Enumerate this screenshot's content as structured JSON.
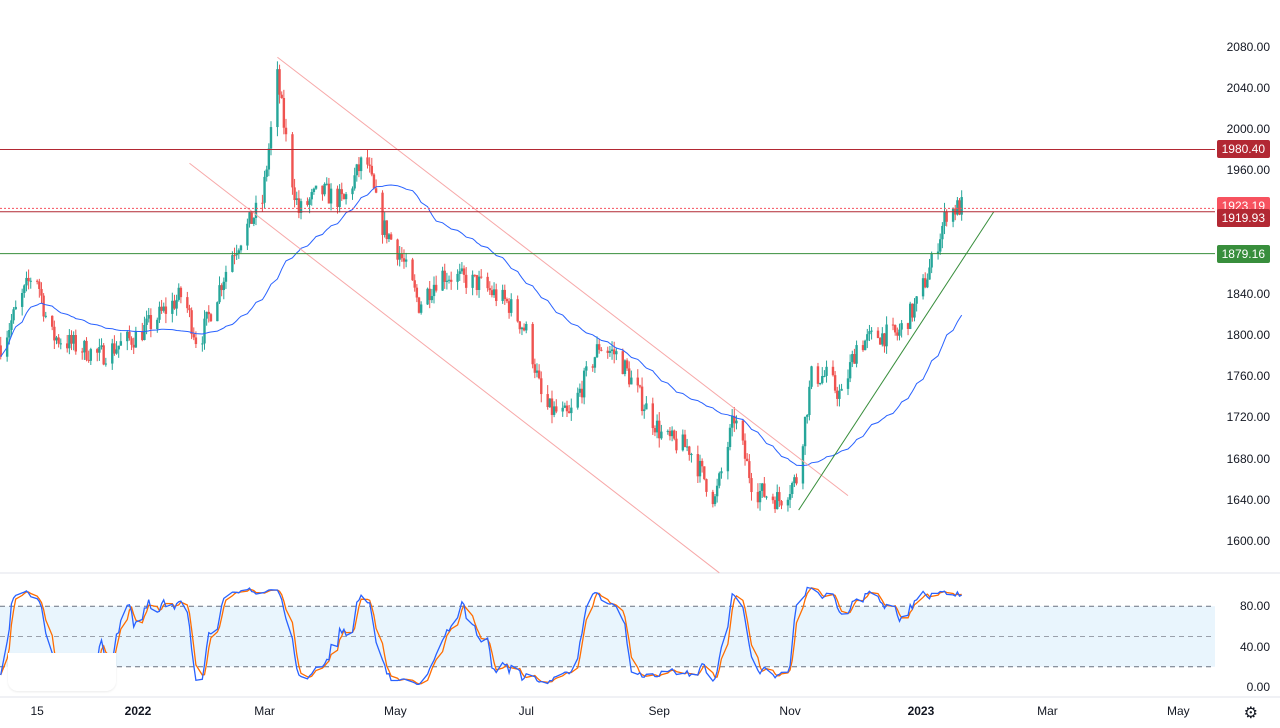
{
  "chart_data": {
    "type": "candlestick",
    "title": "",
    "price_axis": {
      "ticks": [
        "2080.00",
        "2040.00",
        "2000.00",
        "1960.00",
        "1840.00",
        "1800.00",
        "1760.00",
        "1720.00",
        "1680.00",
        "1640.00",
        "1600.00"
      ],
      "tick_values": [
        2080,
        2040,
        2000,
        1960,
        1840,
        1800,
        1760,
        1720,
        1680,
        1640,
        1600
      ],
      "range": [
        1560,
        2100
      ]
    },
    "time_axis": {
      "labels": [
        "15",
        "2022",
        "Mar",
        "May",
        "Jul",
        "Sep",
        "Nov",
        "2023",
        "Mar",
        "May"
      ],
      "label_dates": [
        "2021-11-15",
        "2022-01-01",
        "2022-03-01",
        "2022-05-01",
        "2022-07-01",
        "2022-09-01",
        "2022-11-01",
        "2023-01-01",
        "2023-03-01",
        "2023-05-01"
      ],
      "range": [
        "2021-10-29",
        "2023-05-25"
      ]
    },
    "price_path": [
      [
        "2021-10-29",
        1790
      ],
      [
        "2021-11-14",
        1865
      ],
      [
        "2021-11-21",
        1800
      ],
      [
        "2021-12-14",
        1780
      ],
      [
        "2022-01-01",
        1800
      ],
      [
        "2022-01-22",
        1840
      ],
      [
        "2022-01-29",
        1790
      ],
      [
        "2022-02-14",
        1880
      ],
      [
        "2022-02-28",
        1930
      ],
      [
        "2022-03-07",
        2050
      ],
      [
        "2022-03-13",
        1960
      ],
      [
        "2022-03-17",
        1920
      ],
      [
        "2022-03-27",
        1940
      ],
      [
        "2022-04-07",
        1930
      ],
      [
        "2022-04-17",
        1975
      ],
      [
        "2022-04-24",
        1910
      ],
      [
        "2022-05-03",
        1880
      ],
      [
        "2022-05-12",
        1830
      ],
      [
        "2022-05-22",
        1860
      ],
      [
        "2022-06-09",
        1850
      ],
      [
        "2022-06-23",
        1830
      ],
      [
        "2022-07-02",
        1800
      ],
      [
        "2022-07-09",
        1730
      ],
      [
        "2022-07-21",
        1720
      ],
      [
        "2022-08-04",
        1790
      ],
      [
        "2022-08-13",
        1780
      ],
      [
        "2022-08-23",
        1740
      ],
      [
        "2022-09-03",
        1700
      ],
      [
        "2022-09-15",
        1690
      ],
      [
        "2022-09-27",
        1640
      ],
      [
        "2022-10-06",
        1720
      ],
      [
        "2022-10-15",
        1650
      ],
      [
        "2022-10-27",
        1640
      ],
      [
        "2022-11-04",
        1660
      ],
      [
        "2022-11-11",
        1760
      ],
      [
        "2022-11-18",
        1760
      ],
      [
        "2022-11-25",
        1740
      ],
      [
        "2022-12-02",
        1790
      ],
      [
        "2022-12-12",
        1800
      ],
      [
        "2022-12-21",
        1800
      ],
      [
        "2022-12-30",
        1830
      ],
      [
        "2023-01-06",
        1870
      ],
      [
        "2023-01-13",
        1920
      ],
      [
        "2023-01-20",
        1925
      ]
    ],
    "moving_average": {
      "period": 50,
      "color": "#2962ff"
    },
    "levels": [
      {
        "value": 1980.4,
        "label": "1980.40",
        "color": "#b22833",
        "style": "solid"
      },
      {
        "value": 1923.19,
        "label": "1923.19",
        "color": "#f7525f",
        "style": "dotted"
      },
      {
        "value": 1919.93,
        "label": "1919.93",
        "color": "#b22833",
        "style": "solid"
      },
      {
        "value": 1879.16,
        "label": "1879.16",
        "color": "#388e3c",
        "style": "solid"
      }
    ],
    "trendlines": [
      {
        "name": "channel-upper",
        "from": [
          "2022-03-07",
          2070
        ],
        "to": [
          "2022-11-28",
          1644
        ],
        "color": "#f7a8a8"
      },
      {
        "name": "channel-lower",
        "from": [
          "2022-01-25",
          1967
        ],
        "to": [
          "2022-09-29",
          1569
        ],
        "color": "#f7a8a8"
      },
      {
        "name": "uptrend",
        "from": [
          "2022-11-05",
          1630
        ],
        "to": [
          "2023-02-04",
          1920
        ],
        "color": "#388e3c"
      }
    ],
    "oscillator": {
      "type": "stochastic",
      "k_color": "#2962ff",
      "d_color": "#ff6d00",
      "ticks": [
        "80.00",
        "40.00",
        "0.00"
      ],
      "tick_values": [
        80,
        40,
        0
      ],
      "bands": [
        20,
        50,
        80
      ],
      "range": [
        0,
        100
      ]
    },
    "colors": {
      "up": "#26a69a",
      "down": "#ef5350"
    }
  }
}
